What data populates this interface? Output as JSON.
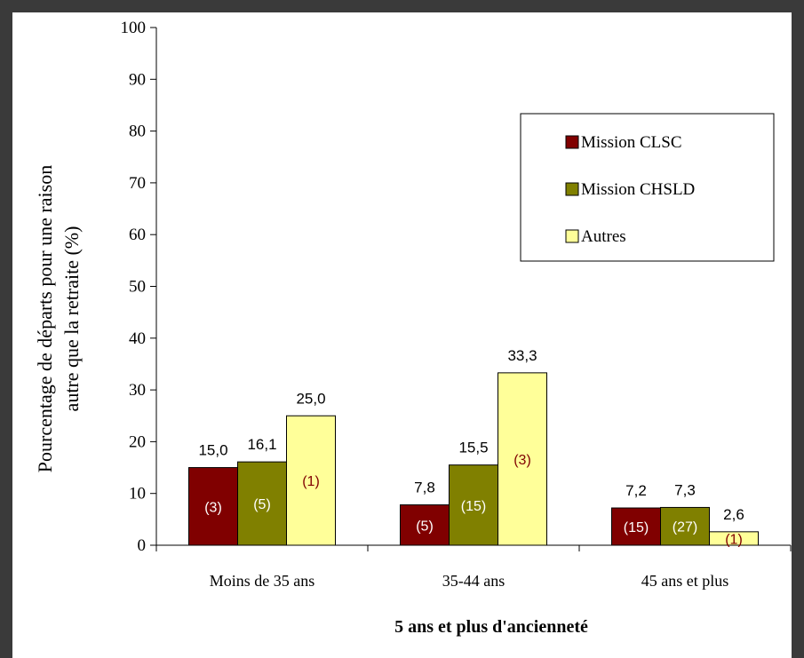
{
  "chart_data": {
    "type": "bar",
    "title": "",
    "ylabel_line1": "Pourcentage de départs pour une raison",
    "ylabel_line2": "autre que la retraite (%)",
    "xlabel": "5 ans et plus d'ancienneté",
    "ylim": [
      0,
      100
    ],
    "yticks": [
      "0",
      "10",
      "20",
      "30",
      "40",
      "50",
      "60",
      "70",
      "80",
      "90",
      "100"
    ],
    "categories": [
      "Moins de 35 ans",
      "35-44 ans",
      "45 ans et plus"
    ],
    "legend_position": "top-right",
    "grid": false,
    "series": [
      {
        "name": "Mission CLSC",
        "color": "#800000",
        "count_color": "#ffffff",
        "values": [
          15.0,
          7.8,
          7.2
        ],
        "value_labels": [
          "15,0",
          "7,8",
          "7,2"
        ],
        "counts": [
          "(3)",
          "(5)",
          "(15)"
        ]
      },
      {
        "name": "Mission CHSLD",
        "color": "#808000",
        "count_color": "#ffffff",
        "values": [
          16.1,
          15.5,
          7.3
        ],
        "value_labels": [
          "16,1",
          "15,5",
          "7,3"
        ],
        "counts": [
          "(5)",
          "(15)",
          "(27)"
        ]
      },
      {
        "name": "Autres",
        "color": "#ffff99",
        "count_color": "#800000",
        "values": [
          25.0,
          33.3,
          2.6
        ],
        "value_labels": [
          "25,0",
          "33,3",
          "2,6"
        ],
        "counts": [
          "(1)",
          "(3)",
          "(1)"
        ]
      }
    ]
  }
}
